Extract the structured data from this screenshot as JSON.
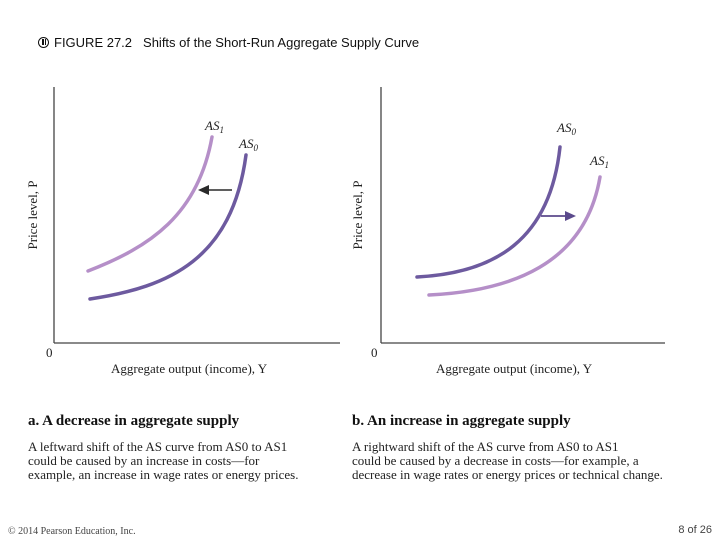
{
  "header": {
    "figure_label": "FIGURE 27.2",
    "caption": "Shifts of the Short-Run Aggregate Supply Curve"
  },
  "panel_a": {
    "y_axis_label": "Price level, P",
    "x_axis_label": "Aggregate output (income), Y",
    "origin": "0",
    "curve_dark_label": "AS",
    "curve_dark_sub": "0",
    "curve_light_label": "AS",
    "curve_light_sub": "1",
    "title": "a. A decrease in aggregate supply",
    "desc_lines": [
      "A leftward shift of the AS curve from AS0 to AS1",
      "could be caused by an increase in costs—for",
      "example, an increase in wage rates or energy prices."
    ]
  },
  "panel_b": {
    "y_axis_label": "Price level, P",
    "x_axis_label": "Aggregate output (income), Y",
    "origin": "0",
    "curve_dark_label": "AS",
    "curve_dark_sub": "0",
    "curve_light_label": "AS",
    "curve_light_sub": "1",
    "title": "b. An increase in aggregate supply",
    "desc_lines": [
      "A rightward shift of the AS curve from AS0 to AS1",
      "could be caused by a decrease in costs—for example, a",
      "decrease in wage rates or energy prices or technical change."
    ]
  },
  "footer": {
    "copyright": "© 2014 Pearson Education, Inc.",
    "page": "8 of 26"
  },
  "colors": {
    "curve_dark": "#6d5a9f",
    "curve_light": "#b58fc8"
  }
}
